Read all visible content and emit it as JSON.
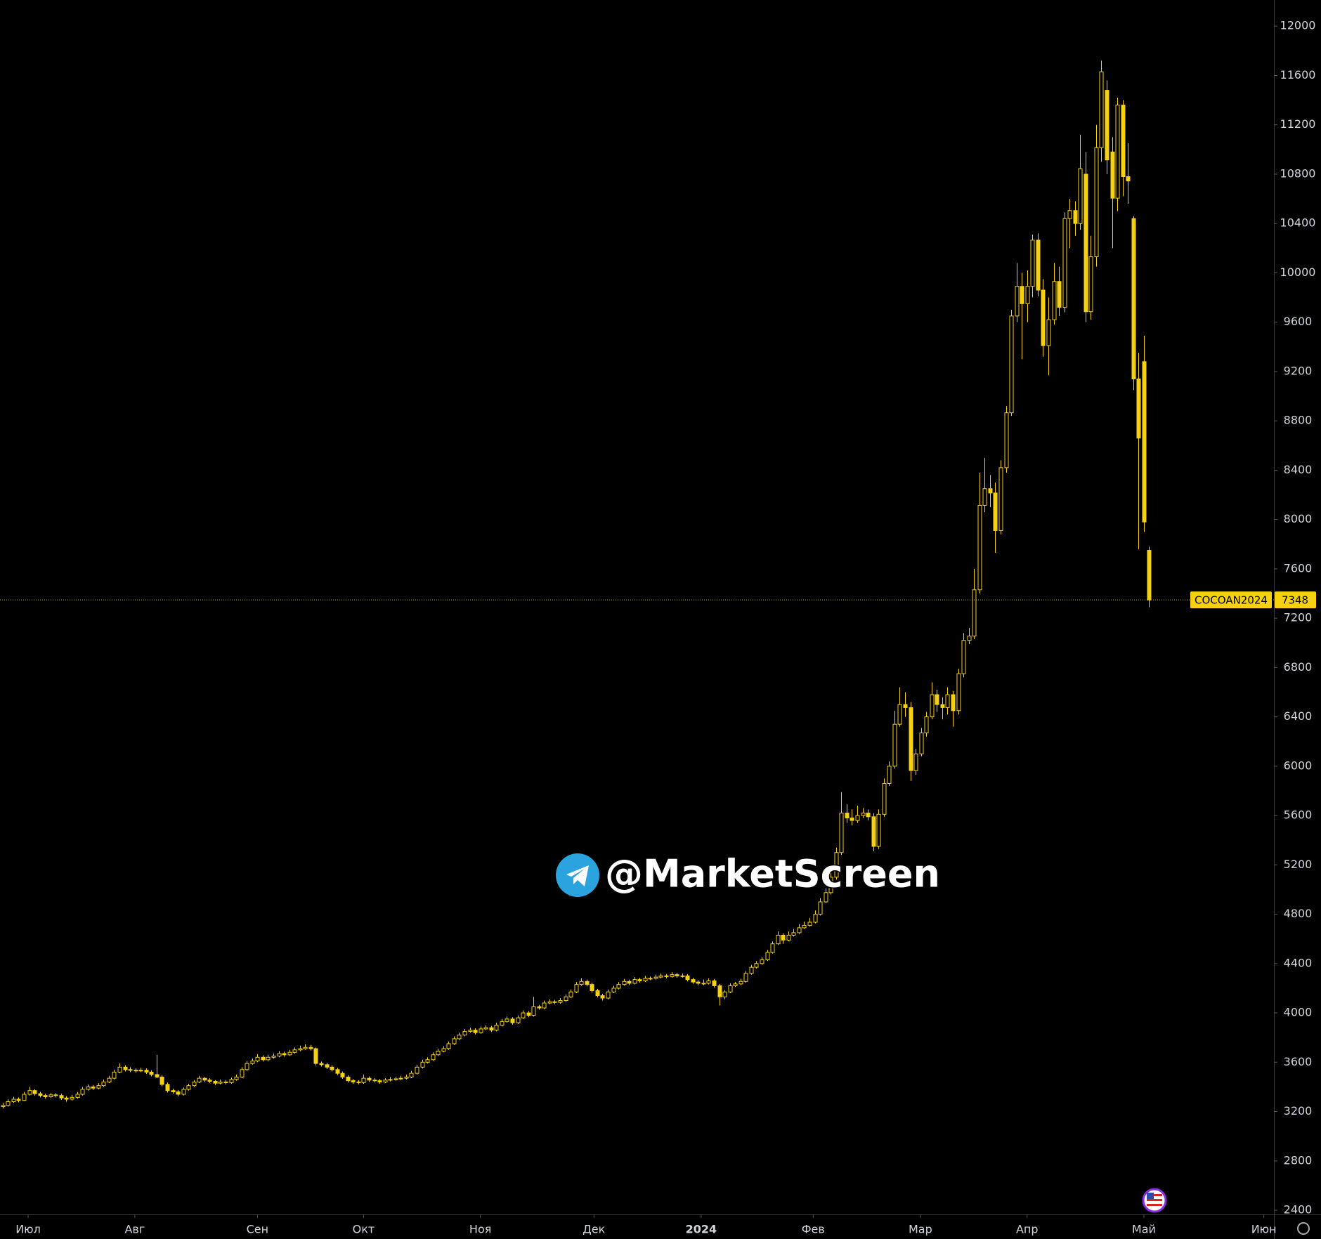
{
  "chart_data": {
    "type": "candlestick",
    "symbol": "COCOAN2024",
    "watermark": "@MarketScreen",
    "color": "#f5d10f",
    "ylim": [
      2366,
      12212
    ],
    "yticks": [
      2400,
      2800,
      3200,
      3600,
      4000,
      4400,
      4800,
      5200,
      5600,
      6000,
      6400,
      6800,
      7200,
      7600,
      8000,
      8400,
      8800,
      9200,
      9600,
      10000,
      10400,
      10800,
      11200,
      11600,
      12000
    ],
    "xlim": [
      -0.5,
      239.5
    ],
    "xticks": [
      {
        "value": 4.8,
        "label": "Июл"
      },
      {
        "value": 24.9,
        "label": "Авг"
      },
      {
        "value": 48,
        "label": "Сен"
      },
      {
        "value": 68,
        "label": "Окт"
      },
      {
        "value": 90,
        "label": "Ноя"
      },
      {
        "value": 111.4,
        "label": "Дек"
      },
      {
        "value": 131.6,
        "label": "2024"
      },
      {
        "value": 152.7,
        "label": "Фев"
      },
      {
        "value": 172.9,
        "label": "Мар"
      },
      {
        "value": 193,
        "label": "Апр"
      },
      {
        "value": 215,
        "label": "Май"
      },
      {
        "value": 237.6,
        "label": "Июн"
      }
    ],
    "ohlc": [
      [
        3240,
        3270,
        3225,
        3250
      ],
      [
        3250,
        3300,
        3240,
        3280
      ],
      [
        3280,
        3320,
        3270,
        3300
      ],
      [
        3300,
        3315,
        3275,
        3290
      ],
      [
        3290,
        3360,
        3285,
        3340
      ],
      [
        3340,
        3400,
        3330,
        3370
      ],
      [
        3370,
        3380,
        3330,
        3345
      ],
      [
        3345,
        3360,
        3315,
        3330
      ],
      [
        3330,
        3345,
        3305,
        3320
      ],
      [
        3320,
        3350,
        3310,
        3335
      ],
      [
        3335,
        3350,
        3315,
        3330
      ],
      [
        3330,
        3345,
        3295,
        3310
      ],
      [
        3310,
        3325,
        3280,
        3300
      ],
      [
        3300,
        3335,
        3290,
        3315
      ],
      [
        3315,
        3360,
        3305,
        3340
      ],
      [
        3340,
        3400,
        3330,
        3380
      ],
      [
        3380,
        3420,
        3370,
        3400
      ],
      [
        3400,
        3415,
        3375,
        3390
      ],
      [
        3390,
        3430,
        3380,
        3410
      ],
      [
        3410,
        3460,
        3400,
        3440
      ],
      [
        3440,
        3490,
        3430,
        3470
      ],
      [
        3470,
        3540,
        3460,
        3520
      ],
      [
        3520,
        3590,
        3510,
        3560
      ],
      [
        3560,
        3575,
        3525,
        3540
      ],
      [
        3540,
        3560,
        3520,
        3535
      ],
      [
        3535,
        3550,
        3515,
        3530
      ],
      [
        3530,
        3555,
        3520,
        3535
      ],
      [
        3535,
        3550,
        3505,
        3520
      ],
      [
        3520,
        3535,
        3485,
        3500
      ],
      [
        3500,
        3660,
        3470,
        3480
      ],
      [
        3480,
        3495,
        3405,
        3420
      ],
      [
        3420,
        3435,
        3355,
        3370
      ],
      [
        3370,
        3385,
        3345,
        3360
      ],
      [
        3360,
        3375,
        3325,
        3340
      ],
      [
        3340,
        3395,
        3330,
        3380
      ],
      [
        3380,
        3425,
        3370,
        3410
      ],
      [
        3410,
        3455,
        3400,
        3440
      ],
      [
        3440,
        3490,
        3430,
        3470
      ],
      [
        3470,
        3480,
        3440,
        3455
      ],
      [
        3455,
        3470,
        3430,
        3445
      ],
      [
        3445,
        3455,
        3415,
        3430
      ],
      [
        3430,
        3460,
        3420,
        3440
      ],
      [
        3440,
        3455,
        3420,
        3435
      ],
      [
        3435,
        3475,
        3425,
        3460
      ],
      [
        3460,
        3500,
        3450,
        3480
      ],
      [
        3480,
        3560,
        3470,
        3540
      ],
      [
        3540,
        3610,
        3530,
        3590
      ],
      [
        3590,
        3630,
        3580,
        3610
      ],
      [
        3610,
        3665,
        3600,
        3640
      ],
      [
        3640,
        3655,
        3605,
        3620
      ],
      [
        3620,
        3660,
        3610,
        3640
      ],
      [
        3640,
        3670,
        3630,
        3650
      ],
      [
        3650,
        3690,
        3640,
        3670
      ],
      [
        3670,
        3685,
        3645,
        3660
      ],
      [
        3660,
        3700,
        3650,
        3680
      ],
      [
        3680,
        3720,
        3670,
        3700
      ],
      [
        3700,
        3735,
        3690,
        3710
      ],
      [
        3710,
        3745,
        3700,
        3720
      ],
      [
        3720,
        3740,
        3695,
        3710
      ],
      [
        3710,
        3720,
        3575,
        3590
      ],
      [
        3590,
        3605,
        3565,
        3580
      ],
      [
        3580,
        3595,
        3545,
        3560
      ],
      [
        3560,
        3575,
        3525,
        3540
      ],
      [
        3540,
        3555,
        3495,
        3510
      ],
      [
        3510,
        3525,
        3465,
        3480
      ],
      [
        3480,
        3495,
        3435,
        3450
      ],
      [
        3450,
        3465,
        3425,
        3440
      ],
      [
        3440,
        3455,
        3420,
        3435
      ],
      [
        3435,
        3500,
        3425,
        3470
      ],
      [
        3470,
        3485,
        3440,
        3455
      ],
      [
        3455,
        3470,
        3435,
        3450
      ],
      [
        3450,
        3465,
        3425,
        3440
      ],
      [
        3440,
        3470,
        3430,
        3455
      ],
      [
        3455,
        3480,
        3445,
        3460
      ],
      [
        3460,
        3480,
        3450,
        3465
      ],
      [
        3465,
        3490,
        3455,
        3470
      ],
      [
        3470,
        3500,
        3460,
        3480
      ],
      [
        3480,
        3530,
        3470,
        3510
      ],
      [
        3510,
        3580,
        3500,
        3560
      ],
      [
        3560,
        3620,
        3550,
        3600
      ],
      [
        3600,
        3640,
        3590,
        3620
      ],
      [
        3620,
        3680,
        3610,
        3660
      ],
      [
        3660,
        3710,
        3650,
        3690
      ],
      [
        3690,
        3730,
        3680,
        3710
      ],
      [
        3710,
        3770,
        3700,
        3750
      ],
      [
        3750,
        3810,
        3740,
        3790
      ],
      [
        3790,
        3840,
        3780,
        3820
      ],
      [
        3820,
        3870,
        3810,
        3850
      ],
      [
        3850,
        3880,
        3840,
        3860
      ],
      [
        3860,
        3875,
        3825,
        3840
      ],
      [
        3840,
        3890,
        3830,
        3870
      ],
      [
        3870,
        3900,
        3860,
        3880
      ],
      [
        3880,
        3895,
        3845,
        3860
      ],
      [
        3860,
        3920,
        3850,
        3900
      ],
      [
        3900,
        3950,
        3890,
        3930
      ],
      [
        3930,
        3970,
        3920,
        3950
      ],
      [
        3950,
        3965,
        3905,
        3920
      ],
      [
        3920,
        3980,
        3910,
        3960
      ],
      [
        3960,
        4020,
        3950,
        4000
      ],
      [
        4000,
        4015,
        3965,
        3980
      ],
      [
        3980,
        4130,
        3970,
        4050
      ],
      [
        4050,
        4065,
        4025,
        4040
      ],
      [
        4040,
        4100,
        4030,
        4080
      ],
      [
        4080,
        4110,
        4070,
        4090
      ],
      [
        4090,
        4105,
        4070,
        4085
      ],
      [
        4085,
        4120,
        4075,
        4100
      ],
      [
        4100,
        4150,
        4090,
        4130
      ],
      [
        4130,
        4190,
        4120,
        4170
      ],
      [
        4170,
        4250,
        4160,
        4230
      ],
      [
        4230,
        4280,
        4220,
        4255
      ],
      [
        4255,
        4270,
        4215,
        4230
      ],
      [
        4230,
        4245,
        4165,
        4180
      ],
      [
        4180,
        4195,
        4125,
        4140
      ],
      [
        4140,
        4155,
        4100,
        4120
      ],
      [
        4120,
        4190,
        4110,
        4170
      ],
      [
        4170,
        4220,
        4160,
        4200
      ],
      [
        4200,
        4250,
        4190,
        4230
      ],
      [
        4230,
        4275,
        4220,
        4255
      ],
      [
        4255,
        4270,
        4225,
        4240
      ],
      [
        4240,
        4290,
        4230,
        4270
      ],
      [
        4270,
        4285,
        4245,
        4260
      ],
      [
        4260,
        4300,
        4250,
        4280
      ],
      [
        4280,
        4295,
        4265,
        4280
      ],
      [
        4280,
        4310,
        4270,
        4290
      ],
      [
        4290,
        4320,
        4280,
        4300
      ],
      [
        4300,
        4315,
        4280,
        4295
      ],
      [
        4295,
        4330,
        4285,
        4310
      ],
      [
        4310,
        4325,
        4285,
        4300
      ],
      [
        4300,
        4320,
        4285,
        4300
      ],
      [
        4300,
        4315,
        4255,
        4270
      ],
      [
        4270,
        4285,
        4235,
        4250
      ],
      [
        4250,
        4265,
        4225,
        4240
      ],
      [
        4240,
        4270,
        4225,
        4240
      ],
      [
        4240,
        4280,
        4230,
        4260
      ],
      [
        4260,
        4275,
        4205,
        4220
      ],
      [
        4220,
        4235,
        4060,
        4130
      ],
      [
        4130,
        4185,
        4110,
        4170
      ],
      [
        4170,
        4240,
        4160,
        4220
      ],
      [
        4220,
        4250,
        4210,
        4235
      ],
      [
        4235,
        4275,
        4225,
        4255
      ],
      [
        4255,
        4340,
        4245,
        4320
      ],
      [
        4320,
        4390,
        4310,
        4370
      ],
      [
        4370,
        4420,
        4360,
        4400
      ],
      [
        4400,
        4450,
        4390,
        4430
      ],
      [
        4430,
        4510,
        4420,
        4490
      ],
      [
        4490,
        4580,
        4480,
        4560
      ],
      [
        4560,
        4660,
        4550,
        4630
      ],
      [
        4630,
        4645,
        4560,
        4590
      ],
      [
        4590,
        4660,
        4580,
        4630
      ],
      [
        4630,
        4680,
        4620,
        4650
      ],
      [
        4650,
        4720,
        4640,
        4690
      ],
      [
        4690,
        4740,
        4680,
        4710
      ],
      [
        4710,
        4770,
        4700,
        4735
      ],
      [
        4735,
        4830,
        4725,
        4800
      ],
      [
        4800,
        4930,
        4790,
        4900
      ],
      [
        4900,
        5010,
        4890,
        4975
      ],
      [
        4975,
        5140,
        4960,
        5100
      ],
      [
        5100,
        5340,
        5080,
        5300
      ],
      [
        5300,
        5790,
        5280,
        5620
      ],
      [
        5620,
        5690,
        5540,
        5580
      ],
      [
        5580,
        5650,
        5520,
        5560
      ],
      [
        5560,
        5680,
        5540,
        5600
      ],
      [
        5600,
        5660,
        5580,
        5620
      ],
      [
        5620,
        5650,
        5560,
        5590
      ],
      [
        5590,
        5620,
        5310,
        5350
      ],
      [
        5350,
        5650,
        5330,
        5610
      ],
      [
        5610,
        5900,
        5590,
        5860
      ],
      [
        5860,
        6040,
        5840,
        6000
      ],
      [
        6000,
        6450,
        5980,
        6340
      ],
      [
        6340,
        6640,
        6320,
        6500
      ],
      [
        6500,
        6600,
        6400,
        6475
      ],
      [
        6475,
        6520,
        5880,
        5965
      ],
      [
        5965,
        6140,
        5930,
        6100
      ],
      [
        6100,
        6310,
        6080,
        6270
      ],
      [
        6270,
        6440,
        6240,
        6400
      ],
      [
        6400,
        6680,
        6380,
        6580
      ],
      [
        6580,
        6620,
        6440,
        6500
      ],
      [
        6500,
        6560,
        6380,
        6475
      ],
      [
        6475,
        6640,
        6420,
        6580
      ],
      [
        6580,
        6610,
        6320,
        6450
      ],
      [
        6450,
        6790,
        6420,
        6750
      ],
      [
        6750,
        7080,
        6720,
        7020
      ],
      [
        7020,
        7120,
        6990,
        7055
      ],
      [
        7055,
        7600,
        7030,
        7430
      ],
      [
        7430,
        8380,
        7400,
        8115
      ],
      [
        8115,
        8500,
        8060,
        8250
      ],
      [
        8250,
        8360,
        8100,
        8215
      ],
      [
        8215,
        8300,
        7730,
        7910
      ],
      [
        7910,
        8480,
        7880,
        8420
      ],
      [
        8420,
        8920,
        8380,
        8865
      ],
      [
        8865,
        9700,
        8840,
        9650
      ],
      [
        9650,
        10080,
        9600,
        9890
      ],
      [
        9890,
        10000,
        9300,
        9750
      ],
      [
        9750,
        10020,
        9600,
        9890
      ],
      [
        9890,
        10310,
        9800,
        10265
      ],
      [
        10265,
        10320,
        9810,
        9860
      ],
      [
        9860,
        9950,
        9320,
        9410
      ],
      [
        9410,
        9800,
        9170,
        9620
      ],
      [
        9620,
        10080,
        9580,
        9930
      ],
      [
        9930,
        10050,
        9650,
        9720
      ],
      [
        9720,
        10490,
        9680,
        10440
      ],
      [
        10440,
        10600,
        10200,
        10505
      ],
      [
        10505,
        10580,
        10300,
        10400
      ],
      [
        10400,
        11120,
        10350,
        10845
      ],
      [
        10800,
        10980,
        9600,
        9685
      ],
      [
        9685,
        10300,
        9620,
        10130
      ],
      [
        10130,
        11200,
        10050,
        11015
      ],
      [
        11015,
        11720,
        10900,
        11630
      ],
      [
        11480,
        11560,
        10800,
        10915
      ],
      [
        10980,
        11100,
        10200,
        10605
      ],
      [
        10605,
        11420,
        10500,
        11360
      ],
      [
        11360,
        11400,
        10620,
        10780
      ],
      [
        10780,
        11050,
        10560,
        10745
      ],
      [
        10440,
        10460,
        9050,
        9140
      ],
      [
        9140,
        9350,
        7760,
        8660
      ],
      [
        9280,
        9490,
        7900,
        7980
      ],
      [
        7750,
        7780,
        7290,
        7348
      ]
    ]
  }
}
